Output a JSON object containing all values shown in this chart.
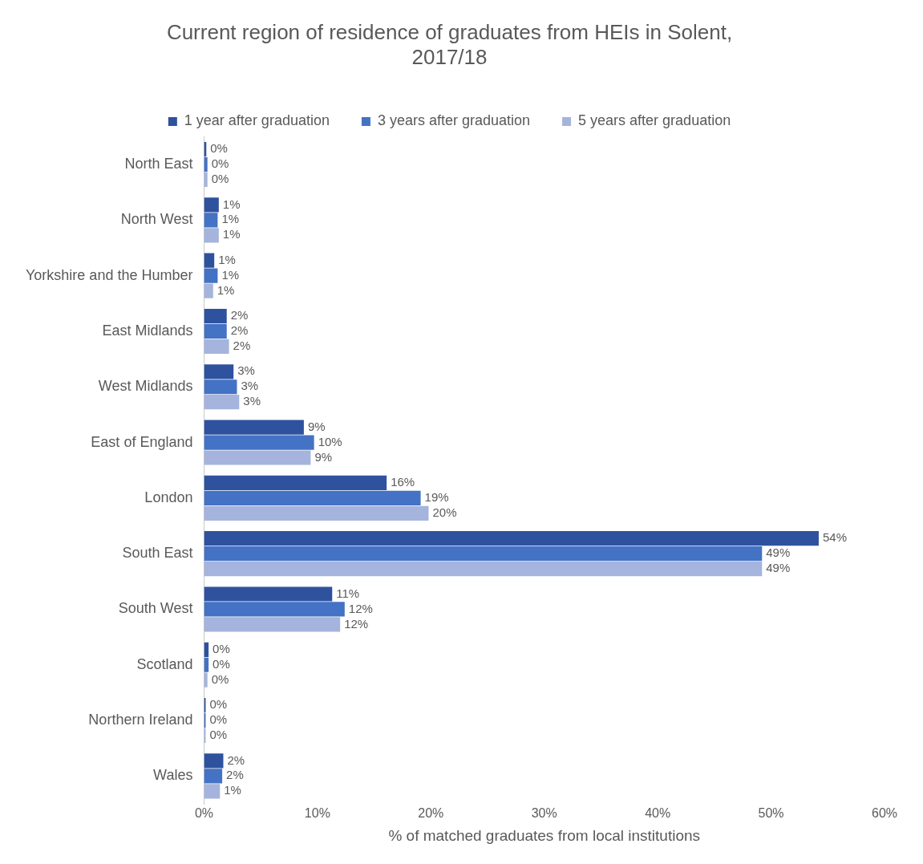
{
  "chart_data": {
    "type": "bar",
    "orientation": "horizontal",
    "title": "Current region of residence of graduates from HEIs in Solent, 2017/18",
    "xlabel": "% of matched graduates from local institutions",
    "categories": [
      "North East",
      "North West",
      "Yorkshire and the Humber",
      "East Midlands",
      "West Midlands",
      "East of England",
      "London",
      "South East",
      "South West",
      "Scotland",
      "Northern Ireland",
      "Wales"
    ],
    "series": [
      {
        "name": "1 year after graduation",
        "color": "#2f529e",
        "values": [
          0.2,
          1.3,
          0.9,
          2.0,
          2.6,
          8.8,
          16.1,
          54.2,
          11.3,
          0.4,
          0,
          1.7
        ],
        "value_labels": [
          "0%",
          "1%",
          "1%",
          "2%",
          "3%",
          "9%",
          "16%",
          "54%",
          "11%",
          "0%",
          "0%",
          "2%"
        ]
      },
      {
        "name": "3 years after graduation",
        "color": "#4472c4",
        "values": [
          0.3,
          1.2,
          1.2,
          2.0,
          2.9,
          9.7,
          19.1,
          49.2,
          12.4,
          0.4,
          0.1,
          1.6
        ],
        "value_labels": [
          "0%",
          "1%",
          "1%",
          "2%",
          "3%",
          "10%",
          "19%",
          "49%",
          "12%",
          "0%",
          "0%",
          "2%"
        ]
      },
      {
        "name": "5 years after graduation",
        "color": "#a5b4dc",
        "values": [
          0.3,
          1.3,
          0.8,
          2.2,
          3.1,
          9.4,
          19.8,
          49.2,
          12.0,
          0.3,
          0,
          1.4
        ],
        "value_labels": [
          "0%",
          "1%",
          "1%",
          "2%",
          "3%",
          "9%",
          "20%",
          "49%",
          "12%",
          "0%",
          "0%",
          "1%"
        ]
      }
    ],
    "xlim": [
      0,
      60
    ],
    "xticks": [
      {
        "value": 0,
        "label": "0%"
      },
      {
        "value": 10,
        "label": "10%"
      },
      {
        "value": 20,
        "label": "20%"
      },
      {
        "value": 30,
        "label": "30%"
      },
      {
        "value": 40,
        "label": "40%"
      },
      {
        "value": 50,
        "label": "50%"
      },
      {
        "value": 60,
        "label": "60%"
      }
    ],
    "grid": false,
    "legend": "top"
  }
}
